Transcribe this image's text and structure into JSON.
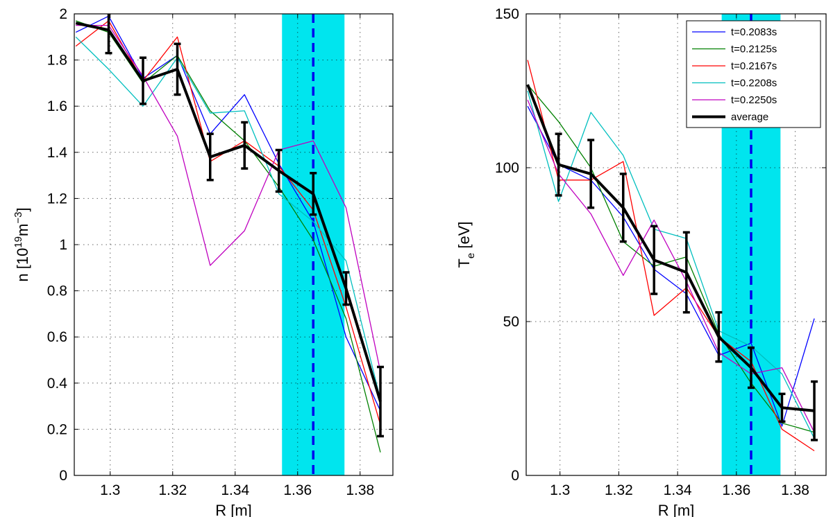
{
  "chart_data": [
    {
      "type": "line",
      "ylabel": "n [10",
      "ylabel_sup": "19",
      "ylabel_mid": "m",
      "ylabel_sup2": "−3",
      "ylabel_end": "]",
      "xlabel": "R [m]",
      "xlim": [
        1.2885,
        1.3905
      ],
      "ylim": [
        0,
        2
      ],
      "xticks": [
        1.3,
        1.32,
        1.34,
        1.36,
        1.38
      ],
      "xticklabels": [
        "1.3",
        "1.32",
        "1.34",
        "1.36",
        "1.38"
      ],
      "yticks": [
        0,
        0.2,
        0.4,
        0.6,
        0.8,
        1.0,
        1.2,
        1.4,
        1.6,
        1.8,
        2.0
      ],
      "yticklabels": [
        "0",
        "0.2",
        "0.4",
        "0.6",
        "0.8",
        "1",
        "1.2",
        "1.4",
        "1.6",
        "1.8",
        "2"
      ],
      "grid": true,
      "highlight_band": {
        "x0": 1.355,
        "x1": 1.375,
        "color": "#00e5ee"
      },
      "dashed_line": {
        "x": 1.365,
        "color": "#0000ee"
      },
      "x": [
        1.289,
        1.2995,
        1.3105,
        1.3215,
        1.332,
        1.343,
        1.354,
        1.365,
        1.3755,
        1.3865
      ],
      "series": [
        {
          "name": "t=0.2083s",
          "color": "#0000ff",
          "values": [
            1.92,
            1.99,
            1.72,
            1.82,
            1.48,
            1.65,
            1.35,
            1.1,
            0.6,
            0.28
          ]
        },
        {
          "name": "t=0.2125s",
          "color": "#008000",
          "values": [
            1.97,
            1.92,
            1.7,
            1.82,
            1.58,
            1.45,
            1.25,
            1.02,
            0.68,
            0.1
          ]
        },
        {
          "name": "t=0.2167s",
          "color": "#ff0000",
          "values": [
            1.86,
            1.97,
            1.71,
            1.9,
            1.36,
            1.45,
            1.34,
            1.15,
            0.73,
            0.22
          ]
        },
        {
          "name": "t=0.2208s",
          "color": "#00bfbf",
          "values": [
            1.9,
            1.76,
            1.6,
            1.81,
            1.57,
            1.58,
            1.22,
            1.1,
            0.93,
            0.33
          ]
        },
        {
          "name": "t=0.2250s",
          "color": "#bf00bf",
          "values": [
            1.95,
            1.95,
            1.73,
            1.47,
            0.91,
            1.06,
            1.41,
            1.45,
            1.16,
            0.45
          ]
        },
        {
          "name": "average",
          "color": "#000000",
          "values": [
            1.96,
            1.93,
            1.71,
            1.76,
            1.38,
            1.43,
            1.32,
            1.22,
            0.81,
            0.32
          ],
          "errors": [
            0,
            0.1,
            0.1,
            0.11,
            0.1,
            0.1,
            0.09,
            0.09,
            0.07,
            0.15
          ]
        }
      ]
    },
    {
      "type": "line",
      "ylabel": "T",
      "ylabel_sub": "e",
      "ylabel_end": " [eV]",
      "xlabel": "R [m]",
      "xlim": [
        1.2885,
        1.3905
      ],
      "ylim": [
        0,
        150
      ],
      "xticks": [
        1.3,
        1.32,
        1.34,
        1.36,
        1.38
      ],
      "xticklabels": [
        "1.3",
        "1.32",
        "1.34",
        "1.36",
        "1.38"
      ],
      "yticks": [
        0,
        50,
        100,
        150
      ],
      "yticklabels": [
        "0",
        "50",
        "100",
        "150"
      ],
      "grid": true,
      "highlight_band": {
        "x0": 1.355,
        "x1": 1.375,
        "color": "#00e5ee"
      },
      "dashed_line": {
        "x": 1.365,
        "color": "#0000ee"
      },
      "legend_loc": "top-right",
      "x": [
        1.289,
        1.2995,
        1.3105,
        1.3215,
        1.332,
        1.343,
        1.354,
        1.365,
        1.3755,
        1.3865
      ],
      "series": [
        {
          "name": "t=0.2083s",
          "color": "#0000ff",
          "values": [
            120,
            101,
            96,
            84,
            67,
            59,
            39,
            43,
            16,
            51
          ]
        },
        {
          "name": "t=0.2125s",
          "color": "#008000",
          "values": [
            127,
            115,
            100,
            76,
            68,
            71,
            46,
            30,
            17,
            14
          ]
        },
        {
          "name": "t=0.2167s",
          "color": "#ff0000",
          "values": [
            135,
            96,
            96,
            102,
            52,
            61,
            45,
            37,
            15,
            8
          ]
        },
        {
          "name": "t=0.2208s",
          "color": "#00bfbf",
          "values": [
            125,
            89,
            118,
            104,
            80,
            77,
            47,
            42,
            33,
            12
          ]
        },
        {
          "name": "t=0.2250s",
          "color": "#bf00bf",
          "values": [
            122,
            98,
            85,
            65,
            83,
            63,
            40,
            33,
            35,
            14
          ]
        },
        {
          "name": "average",
          "color": "#000000",
          "values": [
            127,
            101,
            98,
            87,
            70,
            66,
            45,
            35,
            22,
            21
          ],
          "errors": [
            0,
            10,
            11,
            11,
            11,
            13,
            8,
            6.5,
            4.5,
            9.5
          ]
        }
      ]
    }
  ]
}
